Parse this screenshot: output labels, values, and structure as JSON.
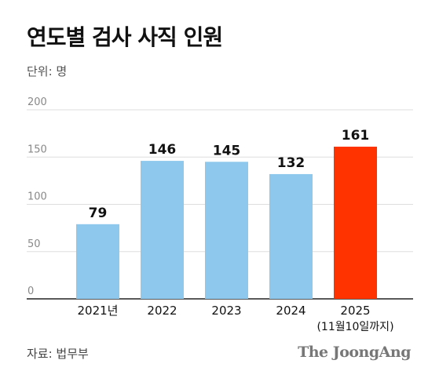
{
  "title": "연도별 검사 사직 인원",
  "unit_label": "단위: 명",
  "source": "자료: 법무부",
  "brand": "The JoongAng",
  "chart_data": {
    "type": "bar",
    "title": "연도별 검사 사직 인원",
    "categories": [
      "2021년",
      "2022",
      "2023",
      "2024",
      "2025"
    ],
    "category_sublabels": [
      "",
      "",
      "",
      "",
      "(11월10일까지)"
    ],
    "values": [
      79,
      146,
      145,
      132,
      161
    ],
    "ylim": [
      0,
      200
    ],
    "yticks": [
      0,
      50,
      100,
      150,
      200
    ],
    "grid": true,
    "colors": {
      "default": "#8ec8ec",
      "highlight": "#ff3300",
      "highlight_index": 4,
      "grid": "#dddddd",
      "axis": "#222222"
    }
  }
}
